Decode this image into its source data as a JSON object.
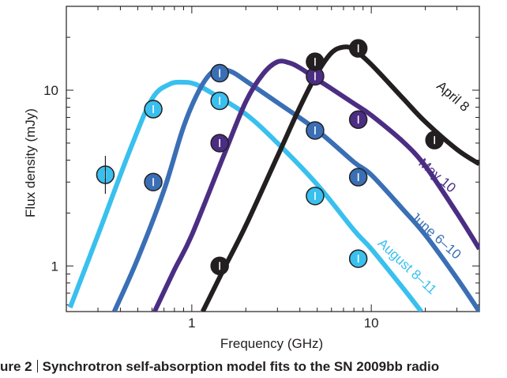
{
  "chart_data": {
    "type": "line",
    "title": "",
    "xlabel": "Frequency (GHz)",
    "ylabel": "Flux density (mJy)",
    "xscale": "log",
    "yscale": "log",
    "xlim": [
      0.2,
      40
    ],
    "ylim": [
      0.55,
      30
    ],
    "x_ticks": [
      1,
      10
    ],
    "x_tick_labels": [
      "1",
      "10"
    ],
    "y_ticks": [
      1,
      10
    ],
    "y_tick_labels": [
      "1",
      "10"
    ],
    "grid": false,
    "series": [
      {
        "name": "April 8",
        "color": "#231f20",
        "curve": {
          "x": [
            1.15,
            1.5,
            2.0,
            3.0,
            4.0,
            5.0,
            6.0,
            7.0,
            8.0,
            10,
            15,
            20,
            30,
            40
          ],
          "y": [
            0.55,
            0.95,
            1.7,
            4.2,
            8.0,
            12.5,
            16.3,
            17.6,
            17.0,
            14.0,
            9.0,
            6.6,
            4.6,
            3.8
          ]
        },
        "points": {
          "x": [
            1.43,
            4.86,
            8.46,
            22.5
          ],
          "y": [
            1.0,
            14.5,
            17.3,
            5.2
          ]
        }
      },
      {
        "name": "May 10",
        "color": "#4b2e83",
        "curve": {
          "x": [
            0.62,
            0.8,
            1.0,
            1.5,
            2.0,
            2.5,
            3.0,
            3.5,
            4.0,
            5.0,
            6.0,
            8.0,
            10,
            15,
            20,
            30,
            40
          ],
          "y": [
            0.55,
            0.95,
            1.5,
            4.2,
            8.6,
            12.4,
            14.5,
            14.3,
            13.4,
            11.5,
            10.2,
            8.4,
            7.2,
            5.1,
            3.7,
            2.0,
            1.25
          ]
        },
        "points": {
          "x": [
            1.43,
            4.86,
            8.46
          ],
          "y": [
            5.0,
            12.0,
            6.8
          ]
        }
      },
      {
        "name": "June 6–10",
        "color": "#3a6fb5",
        "curve": {
          "x": [
            0.37,
            0.5,
            0.7,
            0.9,
            1.1,
            1.3,
            1.5,
            1.7,
            2.0,
            3.0,
            5.0,
            8.0,
            10,
            15,
            20,
            30,
            40
          ],
          "y": [
            0.55,
            1.1,
            2.7,
            6.2,
            10.0,
            12.7,
            13.1,
            12.6,
            11.3,
            8.5,
            5.9,
            3.9,
            3.3,
            2.1,
            1.5,
            0.85,
            0.55
          ]
        },
        "points": {
          "x": [
            0.61,
            1.43,
            4.86,
            8.46
          ],
          "y": [
            3.0,
            12.5,
            5.9,
            3.2
          ]
        }
      },
      {
        "name": "August 8–11",
        "color": "#39c0ee",
        "curve": {
          "x": [
            0.21,
            0.3,
            0.45,
            0.6,
            0.75,
            0.9,
            1.05,
            1.3,
            2.0,
            3.0,
            5.0,
            8.0,
            10,
            15,
            19
          ],
          "y": [
            0.58,
            1.5,
            4.5,
            8.9,
            10.8,
            11.1,
            10.8,
            9.6,
            7.3,
            5.0,
            2.9,
            1.6,
            1.25,
            0.75,
            0.55
          ]
        },
        "points": {
          "x": [
            0.33,
            0.61,
            1.43,
            4.86,
            8.46
          ],
          "y": [
            3.3,
            7.8,
            8.7,
            2.5,
            1.1
          ]
        }
      }
    ],
    "annotations": [
      "April 8",
      "May 10",
      "June 6–10",
      "August 8–11"
    ]
  },
  "caption": {
    "figure_label": "ure 2",
    "text": "Synchrotron self-absorption model fits to the SN 2009bb radio"
  }
}
